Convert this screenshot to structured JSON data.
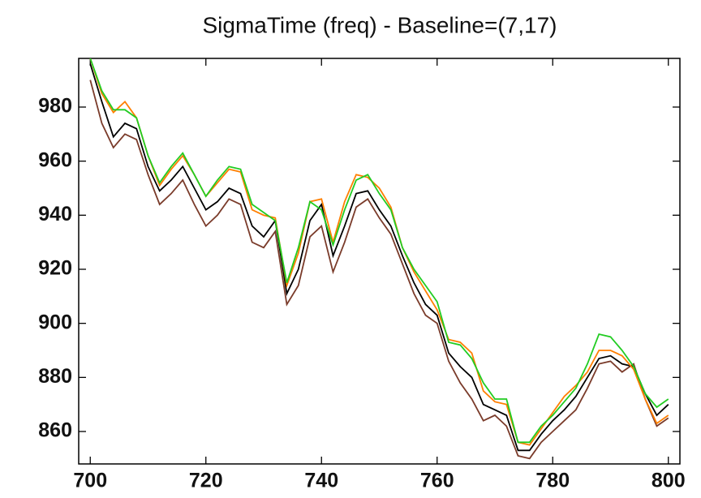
{
  "chart_data": {
    "type": "line",
    "title": "SigmaTime (freq) - Baseline=(7,17)",
    "x": [
      700,
      702,
      704,
      706,
      708,
      710,
      712,
      714,
      716,
      718,
      720,
      722,
      724,
      726,
      728,
      730,
      732,
      734,
      736,
      738,
      740,
      742,
      744,
      746,
      748,
      750,
      752,
      754,
      756,
      758,
      760,
      762,
      764,
      766,
      768,
      770,
      772,
      774,
      776,
      778,
      780,
      782,
      784,
      786,
      788,
      790,
      792,
      794,
      796,
      798,
      800
    ],
    "series": [
      {
        "color": "#7a3b2a",
        "values": [
          990,
          974,
          965,
          970,
          968,
          955,
          944,
          948,
          953,
          944,
          936,
          940,
          946,
          944,
          930,
          928,
          934,
          907,
          914,
          932,
          936,
          919,
          930,
          943,
          946,
          939,
          933,
          922,
          911,
          903,
          900,
          886,
          878,
          872,
          864,
          866,
          862,
          851,
          850,
          856,
          860,
          864,
          868,
          876,
          885,
          886,
          882,
          885,
          872,
          862,
          865
        ]
      },
      {
        "color": "#000000",
        "values": [
          996,
          982,
          969,
          974,
          972,
          958,
          949,
          953,
          958,
          950,
          942,
          945,
          950,
          948,
          936,
          932,
          938,
          911,
          920,
          938,
          944,
          925,
          936,
          948,
          949,
          942,
          936,
          925,
          915,
          907,
          903,
          889,
          884,
          880,
          870,
          868,
          866,
          853,
          853,
          859,
          864,
          868,
          873,
          880,
          887,
          888,
          885,
          884,
          874,
          866,
          870
        ]
      },
      {
        "color": "#ff7f00",
        "values": [
          998,
          985,
          978,
          982,
          976,
          962,
          951,
          957,
          962,
          955,
          947,
          952,
          957,
          956,
          942,
          940,
          939,
          914,
          926,
          945,
          946,
          930,
          945,
          955,
          954,
          950,
          943,
          928,
          919,
          912,
          905,
          894,
          893,
          889,
          875,
          871,
          870,
          856,
          855,
          861,
          867,
          873,
          877,
          882,
          890,
          890,
          888,
          883,
          872,
          863,
          866
        ]
      },
      {
        "color": "#22cc22",
        "values": [
          998,
          986,
          979,
          979,
          976,
          962,
          952,
          958,
          963,
          955,
          947,
          953,
          958,
          957,
          944,
          941,
          938,
          915,
          928,
          945,
          942,
          929,
          942,
          953,
          955,
          948,
          942,
          928,
          920,
          914,
          908,
          893,
          892,
          887,
          878,
          872,
          872,
          856,
          856,
          862,
          866,
          871,
          876,
          885,
          896,
          895,
          890,
          884,
          874,
          869,
          872
        ]
      }
    ],
    "xlim": [
      698,
      802
    ],
    "ylim": [
      848,
      998
    ],
    "xticks": [
      700,
      720,
      740,
      760,
      780,
      800
    ],
    "yticks": [
      860,
      880,
      900,
      920,
      940,
      960,
      980
    ]
  }
}
